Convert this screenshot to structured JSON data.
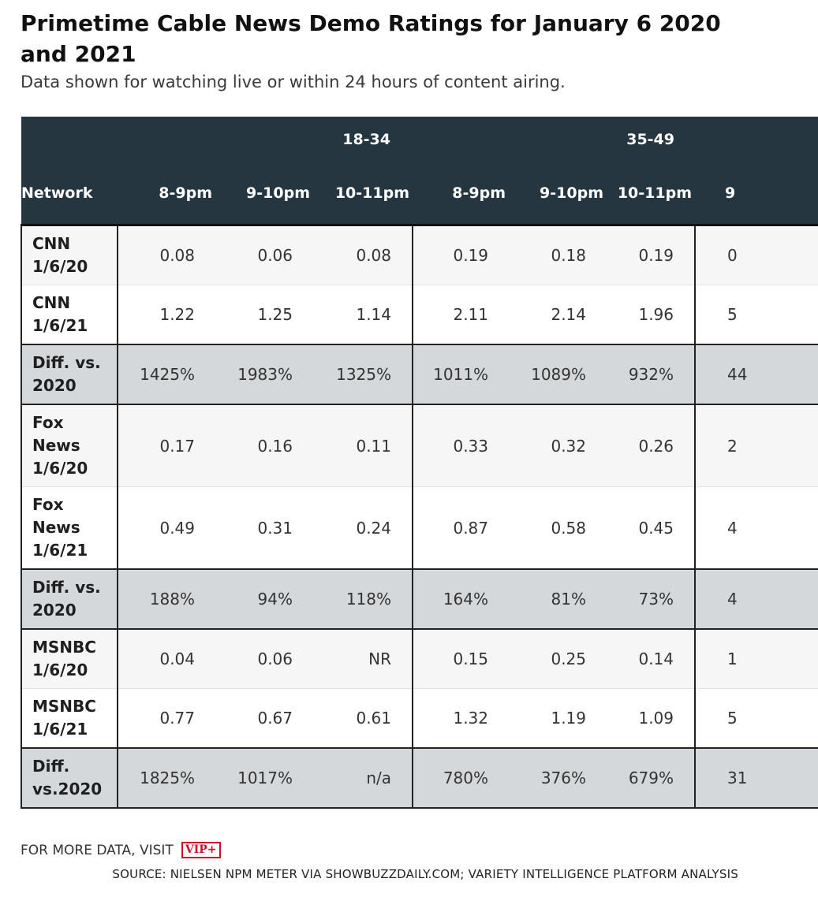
{
  "header": {
    "title": "Primetime Cable News Demo Ratings for January 6 2020 and 2021",
    "subtitle": "Data shown for watching live or within 24 hours of content airing."
  },
  "table": {
    "group_headers": [
      "18-34",
      "35-49"
    ],
    "columns": [
      "Network",
      "8-9pm",
      "9-10pm",
      "10-11pm",
      "8-9pm",
      "9-10pm",
      "10-11pm",
      "9"
    ],
    "rows": [
      {
        "network": "CNN 1/6/20",
        "cells": [
          "0.08",
          "0.06",
          "0.08",
          "0.19",
          "0.18",
          "0.19",
          "0"
        ],
        "type": "plain"
      },
      {
        "network": "CNN 1/6/21",
        "cells": [
          "1.22",
          "1.25",
          "1.14",
          "2.11",
          "2.14",
          "1.96",
          "5"
        ],
        "type": "plain"
      },
      {
        "network": "Diff. vs. 2020",
        "cells": [
          "1425%",
          "1983%",
          "1325%",
          "1011%",
          "1089%",
          "932%",
          "44"
        ],
        "type": "diff"
      },
      {
        "network": "Fox News 1/6/20",
        "cells": [
          "0.17",
          "0.16",
          "0.11",
          "0.33",
          "0.32",
          "0.26",
          "2"
        ],
        "type": "plain"
      },
      {
        "network": "Fox News 1/6/21",
        "cells": [
          "0.49",
          "0.31",
          "0.24",
          "0.87",
          "0.58",
          "0.45",
          "4"
        ],
        "type": "plain"
      },
      {
        "network": "Diff. vs. 2020",
        "cells": [
          "188%",
          "94%",
          "118%",
          "164%",
          "81%",
          "73%",
          "4"
        ],
        "type": "diff"
      },
      {
        "network": "MSNBC 1/6/20",
        "cells": [
          "0.04",
          "0.06",
          "NR",
          "0.15",
          "0.25",
          "0.14",
          "1"
        ],
        "type": "plain"
      },
      {
        "network": "MSNBC 1/6/21",
        "cells": [
          "0.77",
          "0.67",
          "0.61",
          "1.32",
          "1.19",
          "1.09",
          "5"
        ],
        "type": "plain"
      },
      {
        "network": "Diff. vs.2020",
        "cells": [
          "1825%",
          "1017%",
          "n/a",
          "780%",
          "376%",
          "679%",
          "31"
        ],
        "type": "diff"
      }
    ]
  },
  "chart_data": {
    "type": "table",
    "title": "Primetime Cable News Demo Ratings for January 6 2020 and 2021",
    "subtitle": "Data shown for watching live or within 24 hours of content airing.",
    "groups": [
      {
        "name": "18-34",
        "columns": [
          "8-9pm",
          "9-10pm",
          "10-11pm"
        ]
      },
      {
        "name": "35-49",
        "columns": [
          "8-9pm",
          "9-10pm",
          "10-11pm"
        ]
      }
    ],
    "rows": [
      {
        "label": "CNN 1/6/20",
        "values": [
          "0.08",
          "0.06",
          "0.08",
          "0.19",
          "0.18",
          "0.19"
        ]
      },
      {
        "label": "CNN 1/6/21",
        "values": [
          "1.22",
          "1.25",
          "1.14",
          "2.11",
          "2.14",
          "1.96"
        ]
      },
      {
        "label": "Diff. vs. 2020",
        "values": [
          "1425%",
          "1983%",
          "1325%",
          "1011%",
          "1089%",
          "932%"
        ]
      },
      {
        "label": "Fox News 1/6/20",
        "values": [
          "0.17",
          "0.16",
          "0.11",
          "0.33",
          "0.32",
          "0.26"
        ]
      },
      {
        "label": "Fox News 1/6/21",
        "values": [
          "0.49",
          "0.31",
          "0.24",
          "0.87",
          "0.58",
          "0.45"
        ]
      },
      {
        "label": "Diff. vs. 2020",
        "values": [
          "188%",
          "94%",
          "118%",
          "164%",
          "81%",
          "73%"
        ]
      },
      {
        "label": "MSNBC 1/6/20",
        "values": [
          "0.04",
          "0.06",
          "NR",
          "0.15",
          "0.25",
          "0.14"
        ]
      },
      {
        "label": "MSNBC 1/6/21",
        "values": [
          "0.77",
          "0.67",
          "0.61",
          "1.32",
          "1.19",
          "1.09"
        ]
      },
      {
        "label": "Diff. vs.2020",
        "values": [
          "1825%",
          "1017%",
          "n/a",
          "780%",
          "376%",
          "679%"
        ]
      }
    ]
  },
  "footer": {
    "more_data": "FOR MORE DATA, VISIT",
    "vip_logo": "VIP+",
    "source": "SOURCE: NIELSEN NPM METER VIA SHOWBUZZDAILY.COM; VARIETY INTELLIGENCE PLATFORM ANALYSIS"
  },
  "colors": {
    "header_bg": "#253640",
    "diff_row_bg": "#d5d8db",
    "vip_red": "#c8102e"
  }
}
